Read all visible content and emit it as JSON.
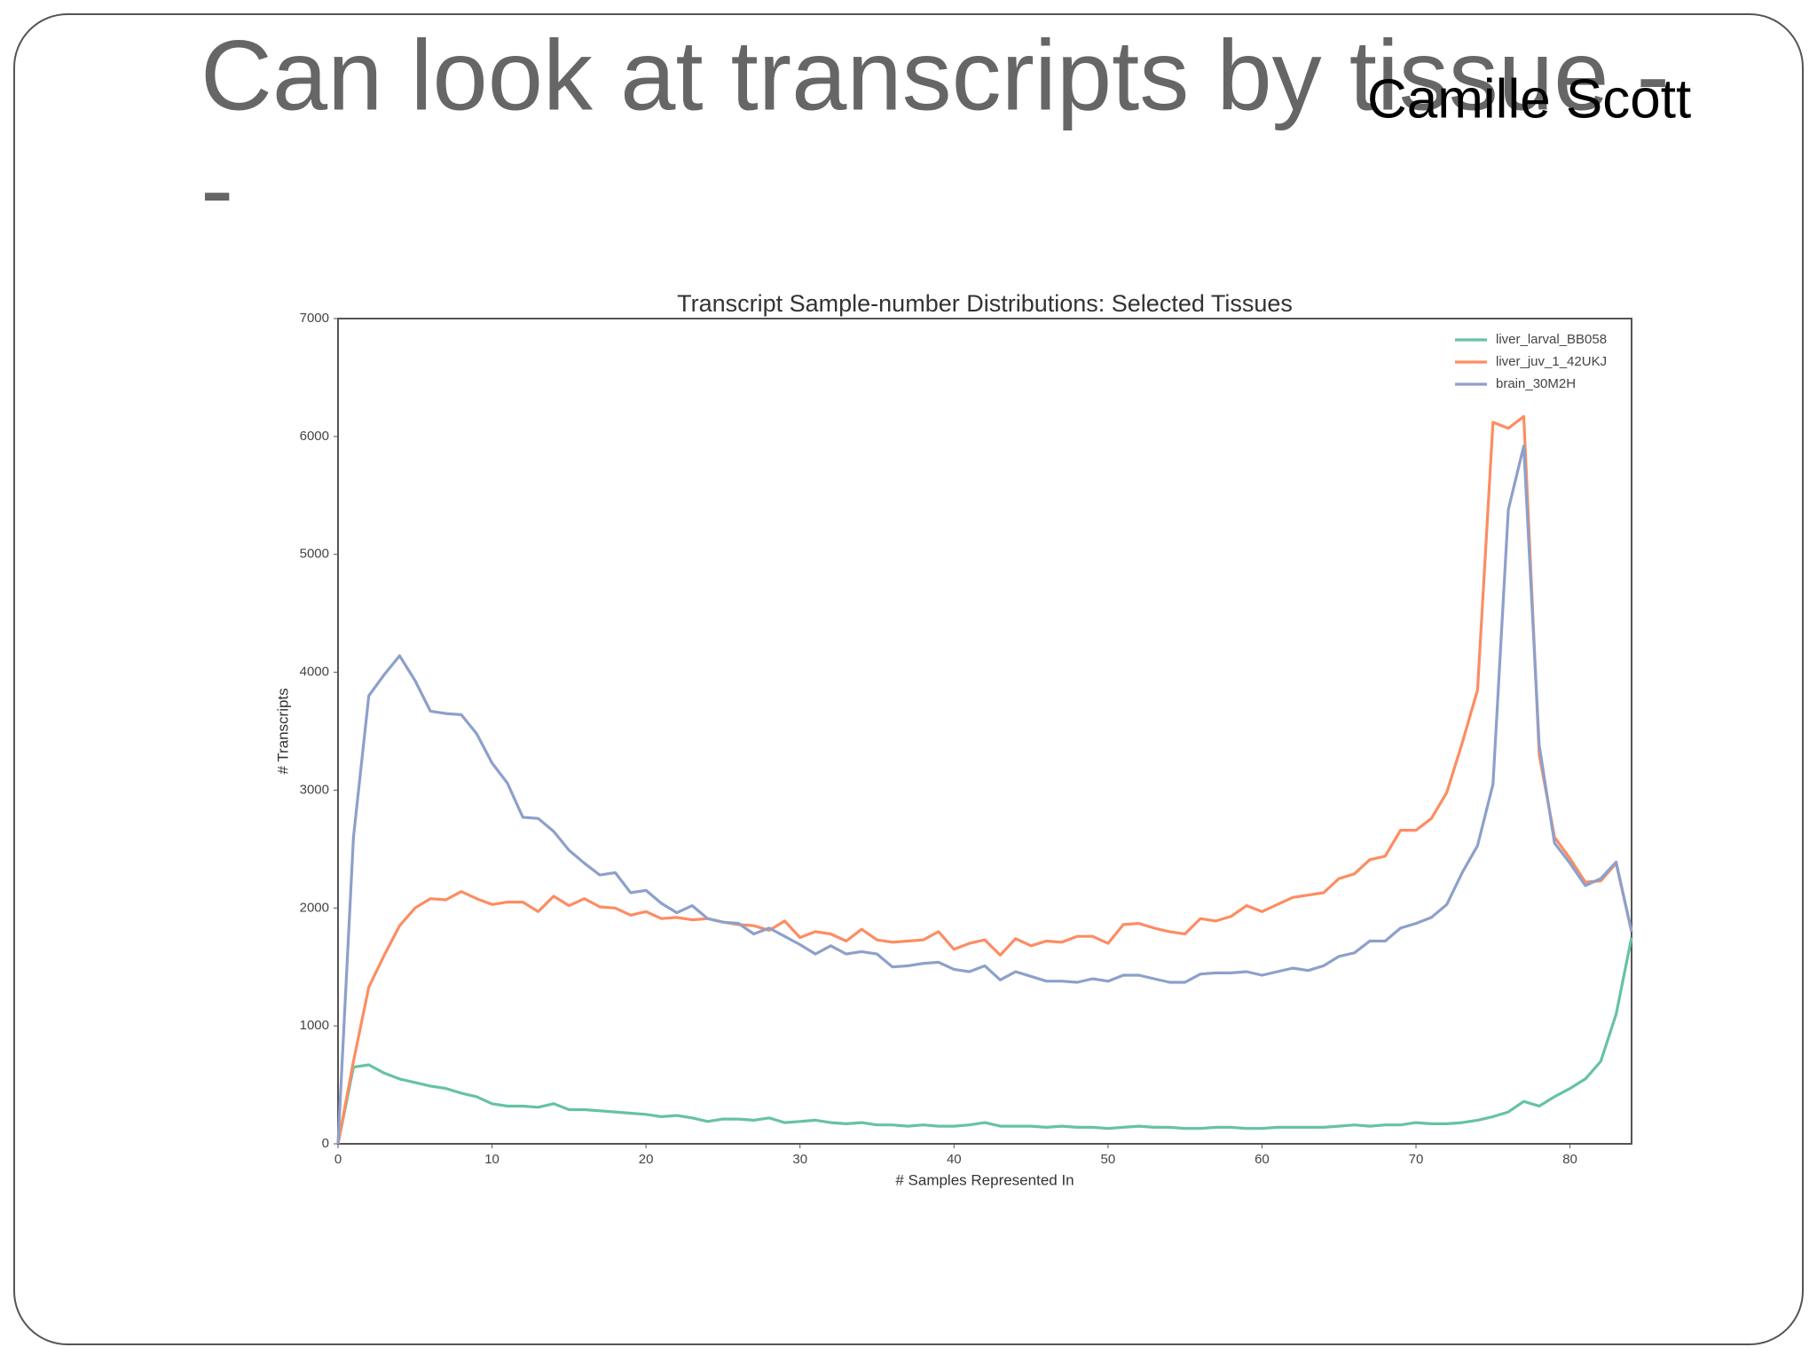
{
  "slide": {
    "title_lines": [
      "Can look at transcripts by tissue -",
      "-"
    ],
    "author": "Camille Scott"
  },
  "chart_data": {
    "type": "line",
    "title": "Transcript Sample-number Distributions: Selected Tissues",
    "x_label": "# Samples Represented In",
    "y_label": "# Transcripts",
    "x": [
      0,
      1,
      2,
      3,
      4,
      5,
      6,
      7,
      8,
      9,
      10,
      11,
      12,
      13,
      14,
      15,
      16,
      17,
      18,
      19,
      20,
      21,
      22,
      23,
      24,
      25,
      26,
      27,
      28,
      29,
      30,
      31,
      32,
      33,
      34,
      35,
      36,
      37,
      38,
      39,
      40,
      41,
      42,
      43,
      44,
      45,
      46,
      47,
      48,
      49,
      50,
      51,
      52,
      53,
      54,
      55,
      56,
      57,
      58,
      59,
      60,
      61,
      62,
      63,
      64,
      65,
      66,
      67,
      68,
      69,
      70,
      71,
      72,
      73,
      74,
      75,
      76,
      77,
      78,
      79,
      80,
      81,
      82,
      83,
      84
    ],
    "series": [
      {
        "name": "liver_larval_BB058",
        "color": "#66c2a5",
        "values": [
          0,
          650,
          670,
          600,
          550,
          520,
          490,
          470,
          430,
          400,
          340,
          320,
          320,
          310,
          340,
          290,
          290,
          280,
          270,
          260,
          250,
          230,
          240,
          220,
          190,
          210,
          210,
          200,
          220,
          180,
          190,
          200,
          180,
          170,
          180,
          160,
          160,
          150,
          160,
          150,
          150,
          160,
          180,
          150,
          150,
          150,
          140,
          150,
          140,
          140,
          130,
          140,
          150,
          140,
          140,
          130,
          130,
          140,
          140,
          130,
          130,
          140,
          140,
          140,
          140,
          150,
          160,
          150,
          160,
          160,
          180,
          170,
          170,
          180,
          200,
          230,
          270,
          360,
          320,
          400,
          470,
          550,
          700,
          1100,
          1750
        ]
      },
      {
        "name": "liver_juv_1_42UKJ",
        "color": "#fc8d62",
        "values": [
          0,
          700,
          1330,
          1600,
          1850,
          2000,
          2080,
          2070,
          2140,
          2080,
          2030,
          2050,
          2050,
          1970,
          2100,
          2020,
          2080,
          2010,
          2000,
          1940,
          1970,
          1910,
          1920,
          1900,
          1910,
          1880,
          1860,
          1850,
          1810,
          1890,
          1750,
          1800,
          1780,
          1720,
          1820,
          1730,
          1710,
          1720,
          1730,
          1800,
          1650,
          1700,
          1730,
          1600,
          1740,
          1680,
          1720,
          1710,
          1760,
          1760,
          1700,
          1860,
          1870,
          1830,
          1800,
          1780,
          1910,
          1890,
          1930,
          2020,
          1970,
          2030,
          2090,
          2110,
          2130,
          2250,
          2290,
          2410,
          2440,
          2660,
          2660,
          2760,
          2980,
          3400,
          3850,
          6120,
          6070,
          6170,
          3300,
          2600,
          2420,
          2220,
          2230,
          2380,
          1800
        ]
      },
      {
        "name": "brain_30M2H",
        "color": "#8da0cb",
        "values": [
          0,
          2600,
          3800,
          3980,
          4140,
          3930,
          3670,
          3650,
          3640,
          3480,
          3230,
          3060,
          2770,
          2760,
          2650,
          2490,
          2380,
          2280,
          2300,
          2130,
          2150,
          2040,
          1960,
          2020,
          1910,
          1880,
          1870,
          1780,
          1830,
          1760,
          1690,
          1610,
          1680,
          1610,
          1630,
          1610,
          1500,
          1510,
          1530,
          1540,
          1480,
          1460,
          1510,
          1390,
          1460,
          1420,
          1380,
          1380,
          1370,
          1400,
          1380,
          1430,
          1430,
          1400,
          1370,
          1370,
          1440,
          1450,
          1450,
          1460,
          1430,
          1460,
          1490,
          1470,
          1510,
          1590,
          1620,
          1720,
          1720,
          1830,
          1870,
          1920,
          2030,
          2300,
          2530,
          3050,
          5380,
          5920,
          3380,
          2550,
          2380,
          2190,
          2250,
          2390,
          1800
        ]
      }
    ],
    "xlim": [
      0,
      84
    ],
    "ylim": [
      0,
      7000
    ],
    "xticks": [
      0,
      10,
      20,
      30,
      40,
      50,
      60,
      70,
      80
    ],
    "yticks": [
      0,
      1000,
      2000,
      3000,
      4000,
      5000,
      6000,
      7000
    ],
    "legend": "upper right"
  }
}
